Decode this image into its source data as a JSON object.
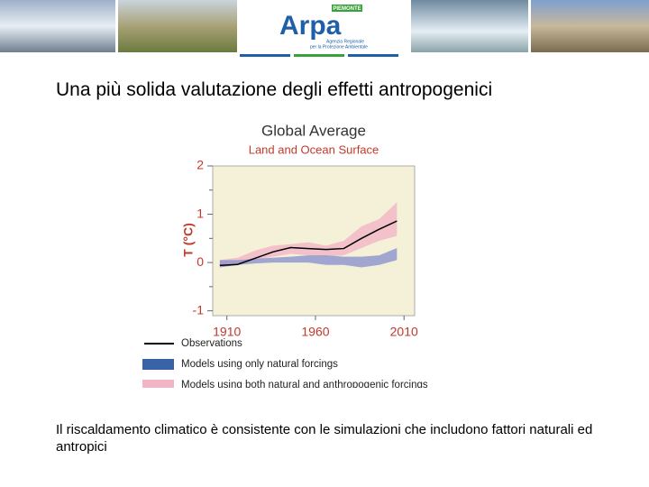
{
  "header": {
    "logo": "Arpa",
    "region": "PIEMONTE",
    "tagline": [
      "Agenzia Regionale",
      "per la Protezione Ambientale"
    ]
  },
  "slide": {
    "title": "Una più solida valutazione degli effetti antropogenici",
    "caption": "Il riscaldamento climatico è consistente con le simulazioni che includono fattori naturali ed antropici"
  },
  "chart_data": {
    "type": "line",
    "title": "Global Average",
    "subtitle": "Land and Ocean Surface",
    "y_label": "T (°C)",
    "x": [
      1906,
      1916,
      1926,
      1936,
      1946,
      1956,
      1966,
      1976,
      1986,
      1996,
      2006
    ],
    "xlim": [
      1902,
      2016
    ],
    "xticks": [
      1910,
      1960,
      2010
    ],
    "ylim": [
      -1.1,
      2
    ],
    "yticks": [
      -1,
      0,
      1,
      2
    ],
    "yminorticks": [
      -0.5,
      0.5,
      1.5
    ],
    "background": "#f5f1d9",
    "series": [
      {
        "name": "Observations",
        "color": "#000000",
        "values": [
          -0.06,
          -0.04,
          0.09,
          0.22,
          0.31,
          0.29,
          0.27,
          0.29,
          0.5,
          0.69,
          0.86
        ]
      },
      {
        "name": "Models using only natural forcings",
        "color": "#3a62a7",
        "band_color": "#8b93cc",
        "lower": [
          -0.1,
          -0.05,
          -0.02,
          0.0,
          0.0,
          0.0,
          -0.05,
          -0.05,
          -0.1,
          -0.05,
          0.05
        ],
        "upper": [
          0.05,
          0.05,
          0.08,
          0.1,
          0.12,
          0.15,
          0.15,
          0.12,
          0.12,
          0.15,
          0.3
        ]
      },
      {
        "name": "Models using both natural and anthropogenic forcings",
        "color": "#f3b5c6",
        "band_color": "#f3b5c6",
        "lower": [
          -0.1,
          -0.05,
          0.05,
          0.12,
          0.18,
          0.15,
          0.12,
          0.15,
          0.3,
          0.45,
          0.55
        ],
        "upper": [
          0.05,
          0.1,
          0.25,
          0.35,
          0.38,
          0.42,
          0.35,
          0.45,
          0.75,
          0.9,
          1.25
        ]
      }
    ]
  }
}
